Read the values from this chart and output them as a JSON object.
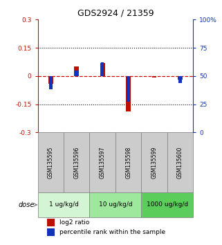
{
  "title": "GDS2924 / 21359",
  "samples": [
    "GSM135595",
    "GSM135596",
    "GSM135597",
    "GSM135598",
    "GSM135599",
    "GSM135600"
  ],
  "log2_ratios": [
    -0.04,
    0.05,
    0.07,
    -0.19,
    -0.008,
    -0.018
  ],
  "percentile_ranks": [
    38,
    55,
    62,
    27,
    50,
    44
  ],
  "ylim_left": [
    -0.3,
    0.3
  ],
  "ylim_right": [
    0,
    100
  ],
  "yticks_left": [
    -0.3,
    -0.15,
    0,
    0.15,
    0.3
  ],
  "yticks_right": [
    0,
    25,
    50,
    75,
    100
  ],
  "ytick_labels_left": [
    "-0.3",
    "-0.15",
    "0",
    "0.15",
    "0.3"
  ],
  "ytick_labels_right": [
    "0",
    "25",
    "50",
    "75",
    "100%"
  ],
  "hlines": [
    0.15,
    -0.15
  ],
  "dose_groups": [
    {
      "label": "1 ug/kg/d",
      "color": "#d4f5d4"
    },
    {
      "label": "10 ug/kg/d",
      "color": "#9ee89e"
    },
    {
      "label": "1000 ug/kg/d",
      "color": "#5acd5a"
    }
  ],
  "bar_color_red": "#bb1100",
  "bar_color_blue": "#1133bb",
  "zero_line_color": "#cc0000",
  "dotted_line_color": "#000000",
  "label_log2": "log2 ratio",
  "label_percentile": "percentile rank within the sample",
  "dose_label": "dose",
  "red_bar_width": 0.18,
  "blue_bar_width": 0.12,
  "sample_label_bg": "#cccccc"
}
